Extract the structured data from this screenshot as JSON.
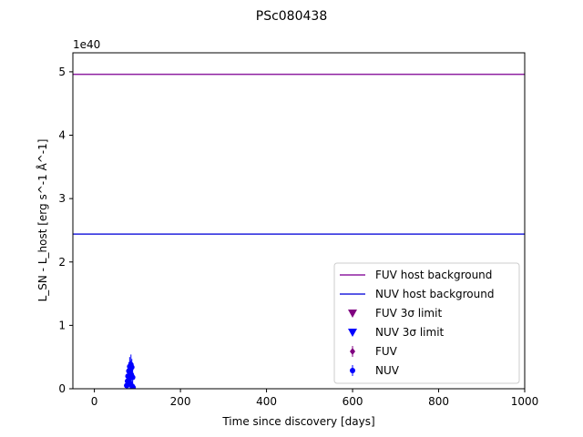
{
  "chart_data": {
    "type": "scatter",
    "title": "PSc080438",
    "xlabel": "Time since discovery [days]",
    "ylabel": "L_SN - L_host [erg s^-1 Å^-1]",
    "y_offset_text": "1e40",
    "xlim": [
      -50,
      1000
    ],
    "ylim": [
      0,
      5.3
    ],
    "x_ticks": [
      0,
      200,
      400,
      600,
      800,
      1000
    ],
    "x_tick_labels": [
      "0",
      "200",
      "400",
      "600",
      "800",
      "1000"
    ],
    "y_ticks": [
      0,
      1,
      2,
      3,
      4,
      5
    ],
    "y_tick_labels": [
      "0",
      "1",
      "2",
      "3",
      "4",
      "5"
    ],
    "y_scale_factor": "1e40",
    "grid": false,
    "legend_placement": "lower-right",
    "hlines": [
      {
        "name": "FUV host background",
        "y": 4.96,
        "color": "#8e1fa0"
      },
      {
        "name": "NUV host background",
        "y": 2.44,
        "color": "#2222dd"
      }
    ],
    "series": [
      {
        "name": "FUV 3σ limit",
        "marker": "triangle-down",
        "color": "#800080",
        "x": [],
        "y": []
      },
      {
        "name": "NUV 3σ limit",
        "marker": "triangle-down",
        "color": "#0000ff",
        "x": [],
        "y": []
      },
      {
        "name": "FUV",
        "marker": "diamond",
        "color": "#800080",
        "x": [],
        "y": [],
        "yerr": []
      },
      {
        "name": "NUV",
        "marker": "circle",
        "color": "#0000ff",
        "x": [
          75,
          77,
          78,
          79,
          80,
          81,
          82,
          83,
          84,
          85,
          86,
          87,
          88,
          89,
          90
        ],
        "y": [
          0.05,
          0.12,
          0.2,
          0.1,
          0.28,
          0.15,
          0.35,
          0.08,
          0.3,
          0.38,
          0.22,
          0.34,
          0.04,
          0.18,
          0.02
        ],
        "yerr": [
          0.08,
          0.1,
          0.12,
          0.1,
          0.14,
          0.12,
          0.15,
          0.1,
          0.14,
          0.16,
          0.12,
          0.13,
          0.08,
          0.1,
          0.06
        ]
      }
    ]
  }
}
